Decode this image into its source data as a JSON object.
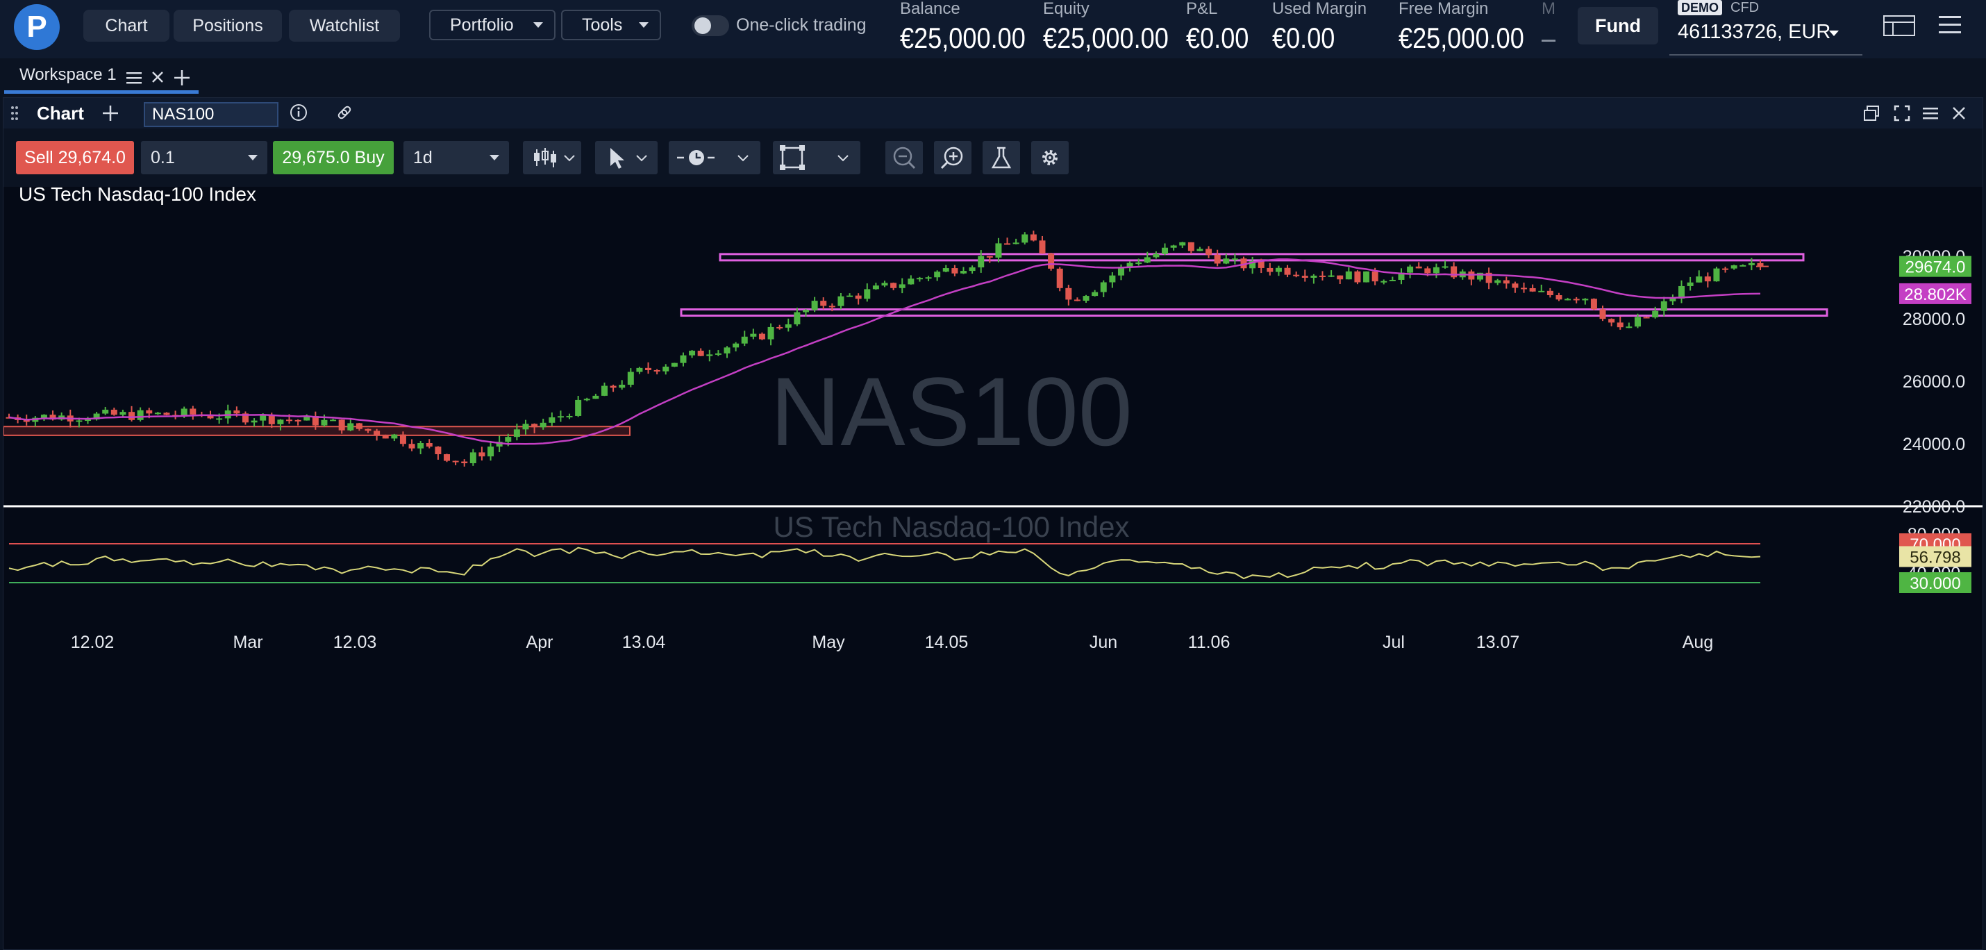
{
  "topbar": {
    "nav": [
      "Chart",
      "Positions",
      "Watchlist"
    ],
    "portfolio_label": "Portfolio",
    "tools_label": "Tools",
    "one_click_label": "One-click trading",
    "stats": [
      {
        "label": "Balance",
        "value": "€25,000.00"
      },
      {
        "label": "Equity",
        "value": "€25,000.00"
      },
      {
        "label": "P&L",
        "value": "€0.00"
      },
      {
        "label": "Used Margin",
        "value": "€0.00"
      },
      {
        "label": "Free Margin",
        "value": "€25,000.00"
      },
      {
        "label": "M",
        "value": "–"
      }
    ],
    "fund_label": "Fund",
    "account": {
      "demo": "DEMO",
      "type": "CFD",
      "number": "461133726, EUR"
    }
  },
  "workspace": {
    "tab_label": "Workspace 1"
  },
  "chart_panel": {
    "title": "Chart",
    "symbol": "NAS100",
    "sell_label": "Sell 29,674.0",
    "quantity": "0.1",
    "buy_label": "29,675.0 Buy",
    "timeframe": "1d",
    "instrument_name": "US Tech Nasdaq-100 Index",
    "watermark_symbol": "NAS100",
    "watermark_name": "US Tech Nasdaq-100 Index"
  },
  "colors": {
    "up": "#4fb543",
    "down": "#e0574f",
    "ma": "#c43fc4",
    "rsi": "#d8d77a",
    "sr_line": "#e060e0",
    "rsi_hi": "#e05050",
    "rsi_lo": "#3fae5a"
  },
  "chart_data": {
    "type": "candlestick",
    "title": "US Tech Nasdaq-100 Index",
    "price_ticks": [
      "30000.0",
      "28000.0",
      "26000.0",
      "24000.0",
      "22000.0"
    ],
    "price_range": [
      21700,
      31000
    ],
    "x_labels": [
      "12.02",
      "Mar",
      "12.03",
      "Apr",
      "13.04",
      "May",
      "14.05",
      "Jun",
      "11.06",
      "Jul",
      "13.07",
      "Aug"
    ],
    "last_price": "29674.0",
    "ma_label": "28.802K",
    "ma_value": 28802,
    "resistance": 29980,
    "support": 28210,
    "demand_zone": [
      24270,
      24550
    ],
    "rsi": {
      "ticks": [
        "80.000",
        "40.000"
      ],
      "range": [
        25,
        85
      ],
      "levels": {
        "upper": "70.000",
        "lower": "30.000"
      },
      "current": "56.798",
      "current_value": 56.798
    }
  }
}
